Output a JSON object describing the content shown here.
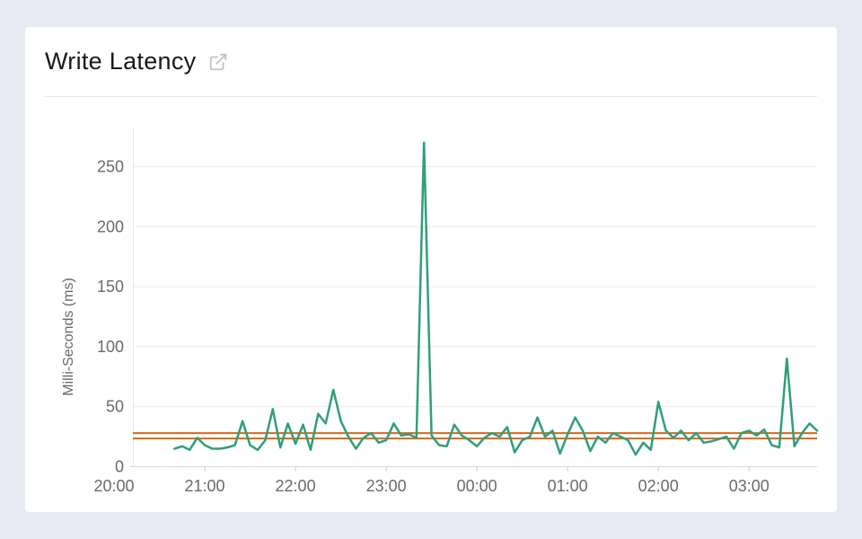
{
  "page": {
    "background": "#e7eaf2"
  },
  "card": {
    "title": "Write Latency",
    "title_icon": "external-link-icon"
  },
  "colors": {
    "series_green": "#2f9e7c",
    "reference_orange": "#d2691e",
    "tick_text": "#6a6a6a",
    "gridline": "#ececec",
    "axis_line": "#d8d8d8"
  },
  "chart_data": {
    "type": "line",
    "title": "Write Latency",
    "xlabel": "",
    "ylabel": "Milli-Seconds (ms)",
    "x_tick_labels": [
      "20:00",
      "21:00",
      "22:00",
      "23:00",
      "00:00",
      "01:00",
      "02:00",
      "03:00"
    ],
    "y_tick_values": [
      0,
      50,
      100,
      150,
      200,
      250
    ],
    "ylim": [
      0,
      280
    ],
    "x_start": "20:00",
    "x_end": "03:45",
    "grid": "horizontal-only",
    "legend_position": "none",
    "reference_lines": [
      {
        "name": "threshold-upper",
        "value": 28,
        "color": "#d2691e"
      },
      {
        "name": "threshold-lower",
        "value": 23.5,
        "color": "#d2691e"
      }
    ],
    "series": [
      {
        "name": "Write Latency",
        "color": "#2f9e7c",
        "points": [
          [
            "20:40",
            15
          ],
          [
            "20:45",
            17
          ],
          [
            "20:50",
            14
          ],
          [
            "20:55",
            24
          ],
          [
            "21:00",
            18
          ],
          [
            "21:05",
            15
          ],
          [
            "21:10",
            15
          ],
          [
            "21:15",
            16
          ],
          [
            "21:20",
            18
          ],
          [
            "21:25",
            38
          ],
          [
            "21:30",
            18
          ],
          [
            "21:35",
            14
          ],
          [
            "21:40",
            22
          ],
          [
            "21:45",
            48
          ],
          [
            "21:50",
            16
          ],
          [
            "21:55",
            36
          ],
          [
            "22:00",
            19
          ],
          [
            "22:05",
            35
          ],
          [
            "22:10",
            14
          ],
          [
            "22:15",
            44
          ],
          [
            "22:20",
            36
          ],
          [
            "22:25",
            64
          ],
          [
            "22:30",
            38
          ],
          [
            "22:35",
            25
          ],
          [
            "22:40",
            15
          ],
          [
            "22:45",
            24
          ],
          [
            "22:50",
            28
          ],
          [
            "22:55",
            20
          ],
          [
            "23:00",
            22
          ],
          [
            "23:05",
            36
          ],
          [
            "23:10",
            26
          ],
          [
            "23:15",
            27
          ],
          [
            "23:20",
            24
          ],
          [
            "23:25",
            270
          ],
          [
            "23:30",
            26
          ],
          [
            "23:35",
            18
          ],
          [
            "23:40",
            17
          ],
          [
            "23:45",
            35
          ],
          [
            "23:50",
            26
          ],
          [
            "23:55",
            22
          ],
          [
            "00:00",
            17
          ],
          [
            "00:05",
            24
          ],
          [
            "00:10",
            28
          ],
          [
            "00:15",
            25
          ],
          [
            "00:20",
            33
          ],
          [
            "00:25",
            12
          ],
          [
            "00:30",
            22
          ],
          [
            "00:35",
            25
          ],
          [
            "00:40",
            41
          ],
          [
            "00:45",
            25
          ],
          [
            "00:50",
            30
          ],
          [
            "00:55",
            11
          ],
          [
            "01:00",
            27
          ],
          [
            "01:05",
            41
          ],
          [
            "01:10",
            30
          ],
          [
            "01:15",
            13
          ],
          [
            "01:20",
            25
          ],
          [
            "01:25",
            20
          ],
          [
            "01:30",
            28
          ],
          [
            "01:35",
            25
          ],
          [
            "01:40",
            22
          ],
          [
            "01:45",
            10
          ],
          [
            "01:50",
            20
          ],
          [
            "01:55",
            14
          ],
          [
            "02:00",
            54
          ],
          [
            "02:05",
            30
          ],
          [
            "02:10",
            24
          ],
          [
            "02:15",
            30
          ],
          [
            "02:20",
            22
          ],
          [
            "02:25",
            28
          ],
          [
            "02:30",
            20
          ],
          [
            "02:35",
            21
          ],
          [
            "02:40",
            23
          ],
          [
            "02:45",
            25
          ],
          [
            "02:50",
            15
          ],
          [
            "02:55",
            28
          ],
          [
            "03:00",
            30
          ],
          [
            "03:05",
            26
          ],
          [
            "03:10",
            31
          ],
          [
            "03:15",
            18
          ],
          [
            "03:20",
            16
          ],
          [
            "03:25",
            90
          ],
          [
            "03:30",
            17
          ],
          [
            "03:35",
            28
          ],
          [
            "03:40",
            36
          ],
          [
            "03:45",
            30
          ]
        ]
      }
    ]
  }
}
